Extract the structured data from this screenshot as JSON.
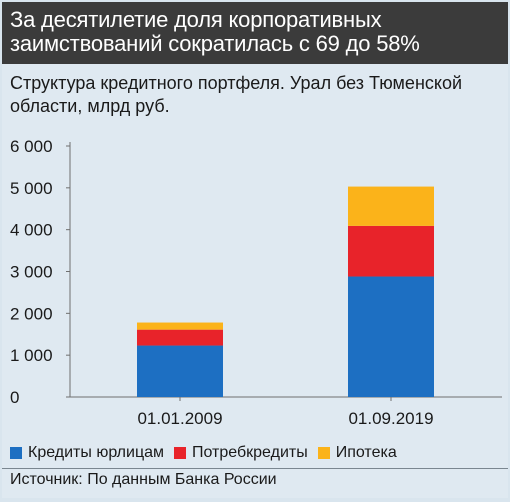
{
  "title_lines": [
    "За десятилетие доля корпоративных",
    "заимствований сократилась с 69 до 58%"
  ],
  "subtitle_lines": [
    "Структура кредитного портфеля. Урал без Тюменской",
    "области, млрд руб."
  ],
  "source": "Источник: По данным Банка России",
  "colors": {
    "corporate": "#1d6fc2",
    "consumer": "#e8232a",
    "mortgage": "#fbb31a"
  },
  "chart_data": {
    "type": "bar",
    "stacked": true,
    "categories": [
      "01.01.2009",
      "01.09.2019"
    ],
    "series": [
      {
        "name": "Кредиты юрлицам",
        "values": [
          1230,
          2880
        ]
      },
      {
        "name": "Потребкредиты",
        "values": [
          380,
          1210
        ]
      },
      {
        "name": "Ипотека",
        "values": [
          170,
          940
        ]
      }
    ],
    "ylim": [
      0,
      6000
    ],
    "yticks": [
      0,
      1000,
      2000,
      3000,
      4000,
      5000,
      6000
    ],
    "ytick_labels": [
      "0",
      "1 000",
      "2 000",
      "3 000",
      "4 000",
      "5 000",
      "6 000"
    ],
    "grid": false,
    "legend_position": "bottom"
  }
}
